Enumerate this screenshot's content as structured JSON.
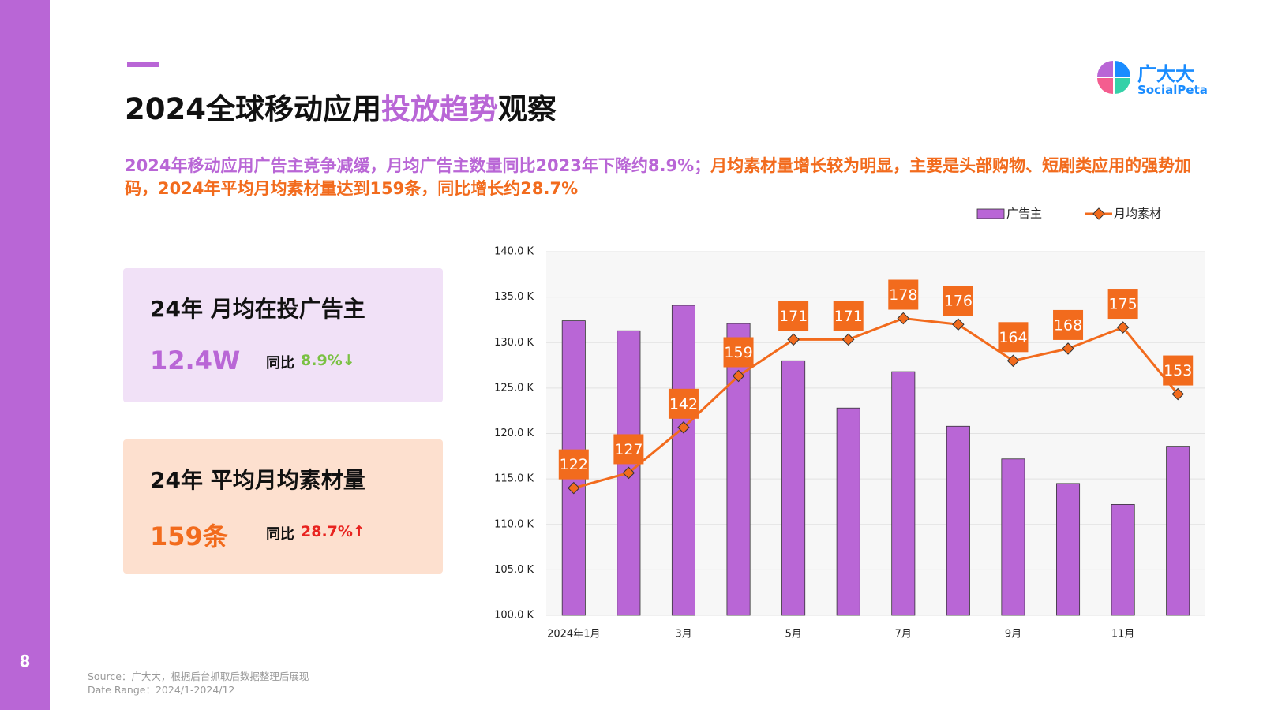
{
  "page": {
    "number": "8",
    "title": {
      "part1": "2024全球移动应用",
      "highlight": "投放趋势",
      "part2": "观察"
    },
    "subtitle": {
      "purple": "2024年移动应用广告主竞争减缓，月均广告主数量同比2023年下降约8.9%；",
      "orange": "月均素材量增长较为明显，主要是头部购物、短剧类应用的强势加码，2024年平均月均素材量达到159条，同比增长约28.7%"
    },
    "logo": {
      "name": "广大大",
      "brand": "SocialPeta"
    },
    "cards": [
      {
        "title": "24年 月均在投广告主",
        "value": "12.4W",
        "change_label": "同比",
        "change": "8.9%↓"
      },
      {
        "title": "24年 平均月均素材量",
        "value": "159条",
        "change_label": "同比",
        "change": "28.7%↑"
      }
    ],
    "source": [
      "Source：广大大，根据后台抓取后数据整理后展现",
      "Date Range：2024/1-2024/12"
    ]
  },
  "chart_data": {
    "type": "bar",
    "categories": [
      "2024年1月",
      null,
      "3月",
      null,
      "5月",
      null,
      "7月",
      null,
      "9月",
      null,
      "11月",
      null
    ],
    "series": [
      {
        "name": "广告主",
        "type": "bar",
        "color": "#b966d6",
        "values": [
          132400,
          131300,
          134100,
          132100,
          128000,
          122800,
          126800,
          120800,
          117200,
          114500,
          112200,
          118600
        ]
      },
      {
        "name": "月均素材",
        "type": "line",
        "axis": "y2",
        "color": "#f26b1d",
        "values": [
          122,
          127,
          142,
          159,
          171,
          171,
          178,
          176,
          164,
          168,
          175,
          153
        ]
      }
    ],
    "ylim": [
      100000,
      140000
    ],
    "yticks": [
      {
        "value": 100000,
        "label": "100.0 K"
      },
      {
        "value": 105000,
        "label": "105.0 K"
      },
      {
        "value": 110000,
        "label": "110.0 K"
      },
      {
        "value": 115000,
        "label": "115.0 K"
      },
      {
        "value": 120000,
        "label": "120.0 K"
      },
      {
        "value": 125000,
        "label": "125.0 K"
      },
      {
        "value": 130000,
        "label": "130.0 K"
      },
      {
        "value": 135000,
        "label": "135.0 K"
      },
      {
        "value": 140000,
        "label": "140.0 K"
      }
    ],
    "y2lim": [
      80,
      200
    ],
    "grid": true,
    "legend": "top-right"
  }
}
